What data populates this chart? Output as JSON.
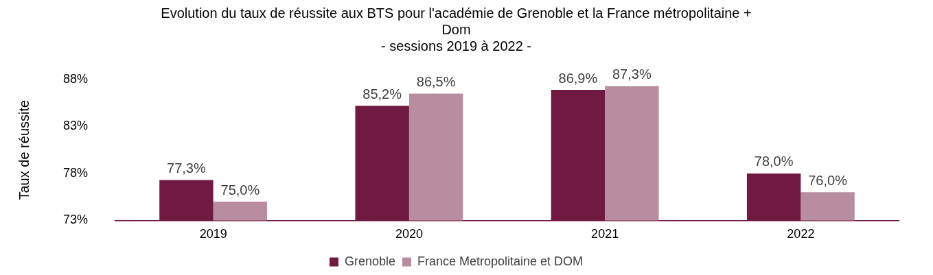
{
  "chart_data": {
    "type": "bar",
    "title": "Evolution du taux de réussite aux BTS pour l'académie de Grenoble et la France métropolitaine + Dom",
    "subtitle": "- sessions 2019 à 2022 -",
    "ylabel": "Taux de réussite",
    "categories": [
      "2019",
      "2020",
      "2021",
      "2022"
    ],
    "series": [
      {
        "name": "Grenoble",
        "color": "#701a42",
        "values": [
          77.3,
          85.2,
          86.9,
          78.0
        ],
        "value_labels": [
          "77,3%",
          "85,2%",
          "86,9%",
          "78,0%"
        ]
      },
      {
        "name": "France Metropolitaine et DOM",
        "color": "#b88da0",
        "values": [
          75.0,
          86.5,
          87.3,
          76.0
        ],
        "value_labels": [
          "75,0%",
          "86,5%",
          "87,3%",
          "76,0%"
        ]
      }
    ],
    "ylim": [
      73,
      88
    ],
    "yticks": [
      {
        "value": 73,
        "label": "73%"
      },
      {
        "value": 78,
        "label": "78%"
      },
      {
        "value": 83,
        "label": "83%"
      },
      {
        "value": 88,
        "label": "88%"
      }
    ],
    "grid": false,
    "legend": "bottom"
  }
}
